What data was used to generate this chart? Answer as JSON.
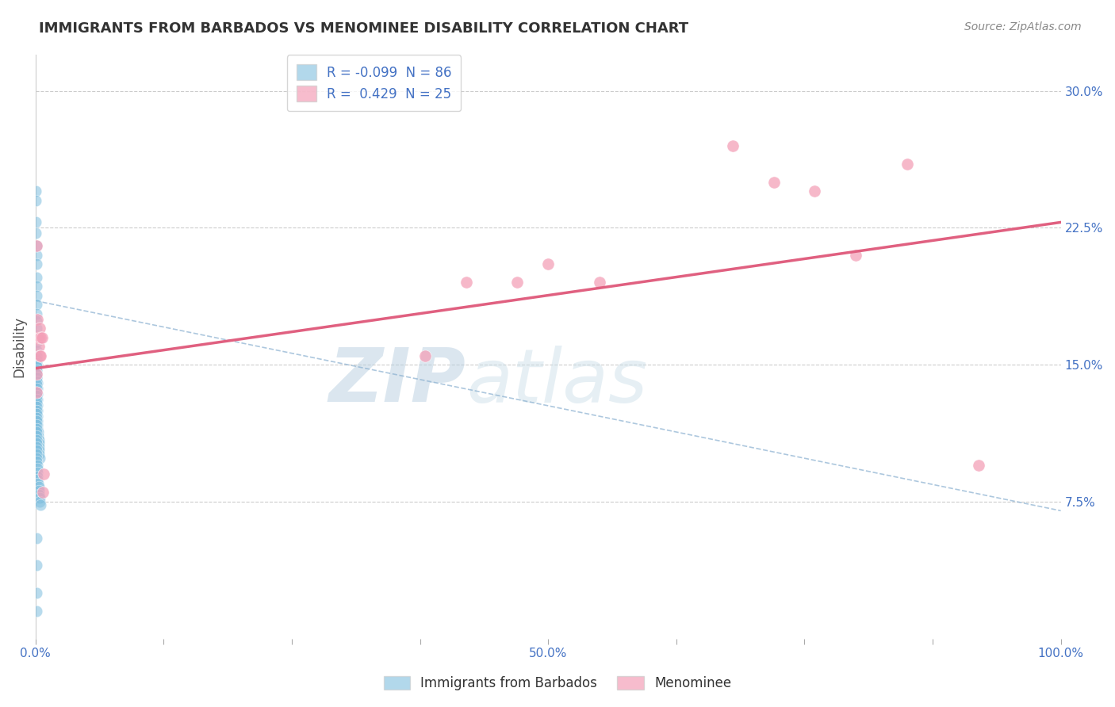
{
  "title": "IMMIGRANTS FROM BARBADOS VS MENOMINEE DISABILITY CORRELATION CHART",
  "source": "Source: ZipAtlas.com",
  "ylabel": "Disability",
  "legend_blue_r": "-0.099",
  "legend_blue_n": "86",
  "legend_pink_r": "0.429",
  "legend_pink_n": "25",
  "watermark_zip": "ZIP",
  "watermark_atlas": "atlas",
  "blue_color": "#7fbfdf",
  "pink_color": "#f4a0b8",
  "blue_line_color": "#7bafd4",
  "pink_line_color": "#e06080",
  "dashed_line_color": "#8ab0d0",
  "background_color": "#ffffff",
  "grid_color": "#cccccc",
  "blue_scatter_x": [
    0.0002,
    0.0003,
    0.0004,
    0.0005,
    0.0006,
    0.0007,
    0.0008,
    0.0009,
    0.001,
    0.001,
    0.001,
    0.001,
    0.001,
    0.001,
    0.001,
    0.001,
    0.001,
    0.001,
    0.001,
    0.001,
    0.001,
    0.001,
    0.0015,
    0.0015,
    0.0015,
    0.002,
    0.002,
    0.002,
    0.002,
    0.002,
    0.002,
    0.002,
    0.0025,
    0.0025,
    0.003,
    0.003,
    0.003,
    0.003,
    0.0035,
    0.004,
    0.001,
    0.001,
    0.001,
    0.001,
    0.001,
    0.001,
    0.001,
    0.001,
    0.001,
    0.001,
    0.001,
    0.001,
    0.001,
    0.001,
    0.001,
    0.001,
    0.001,
    0.001,
    0.001,
    0.001,
    0.001,
    0.001,
    0.001,
    0.001,
    0.001,
    0.001,
    0.001,
    0.001,
    0.001,
    0.001,
    0.0015,
    0.0015,
    0.002,
    0.002,
    0.002,
    0.0025,
    0.003,
    0.003,
    0.003,
    0.004,
    0.004,
    0.005,
    0.001,
    0.001,
    0.001,
    0.001
  ],
  "blue_scatter_y": [
    0.245,
    0.24,
    0.228,
    0.222,
    0.215,
    0.21,
    0.205,
    0.198,
    0.193,
    0.188,
    0.183,
    0.178,
    0.174,
    0.17,
    0.166,
    0.162,
    0.158,
    0.155,
    0.152,
    0.149,
    0.146,
    0.143,
    0.14,
    0.137,
    0.134,
    0.131,
    0.128,
    0.125,
    0.122,
    0.119,
    0.117,
    0.115,
    0.113,
    0.111,
    0.109,
    0.107,
    0.105,
    0.103,
    0.101,
    0.099,
    0.155,
    0.153,
    0.151,
    0.149,
    0.147,
    0.145,
    0.143,
    0.141,
    0.139,
    0.137,
    0.135,
    0.133,
    0.131,
    0.129,
    0.127,
    0.125,
    0.123,
    0.121,
    0.119,
    0.117,
    0.115,
    0.113,
    0.111,
    0.109,
    0.107,
    0.105,
    0.103,
    0.101,
    0.099,
    0.097,
    0.095,
    0.093,
    0.091,
    0.089,
    0.087,
    0.085,
    0.083,
    0.081,
    0.079,
    0.077,
    0.075,
    0.073,
    0.055,
    0.04,
    0.025,
    0.015
  ],
  "pink_scatter_x": [
    0.001,
    0.001,
    0.001,
    0.002,
    0.002,
    0.003,
    0.003,
    0.004,
    0.004,
    0.005,
    0.005,
    0.006,
    0.007,
    0.008,
    0.38,
    0.42,
    0.47,
    0.5,
    0.55,
    0.68,
    0.72,
    0.76,
    0.8,
    0.85,
    0.92
  ],
  "pink_scatter_y": [
    0.215,
    0.145,
    0.135,
    0.175,
    0.165,
    0.165,
    0.16,
    0.17,
    0.155,
    0.165,
    0.155,
    0.165,
    0.08,
    0.09,
    0.155,
    0.195,
    0.195,
    0.205,
    0.195,
    0.27,
    0.25,
    0.245,
    0.21,
    0.26,
    0.095
  ],
  "pink_trendline_x": [
    0.0,
    1.0
  ],
  "pink_trendline_y": [
    0.148,
    0.228
  ],
  "blue_trendline_x": [
    0.0,
    1.0
  ],
  "blue_trendline_y": [
    0.185,
    0.07
  ],
  "xlim": [
    0.0,
    1.0
  ],
  "ylim": [
    0.0,
    0.32
  ],
  "y_ticks": [
    0.075,
    0.15,
    0.225,
    0.3
  ],
  "y_labels": [
    "7.5%",
    "15.0%",
    "22.5%",
    "30.0%"
  ],
  "x_ticks": [
    0.0,
    0.125,
    0.25,
    0.375,
    0.5,
    0.625,
    0.75,
    0.875,
    1.0
  ],
  "x_labels": [
    "0.0%",
    "",
    "",
    "",
    "50.0%",
    "",
    "",
    "",
    "100.0%"
  ],
  "legend_bottom_blue": "Immigrants from Barbados",
  "legend_bottom_pink": "Menominee"
}
